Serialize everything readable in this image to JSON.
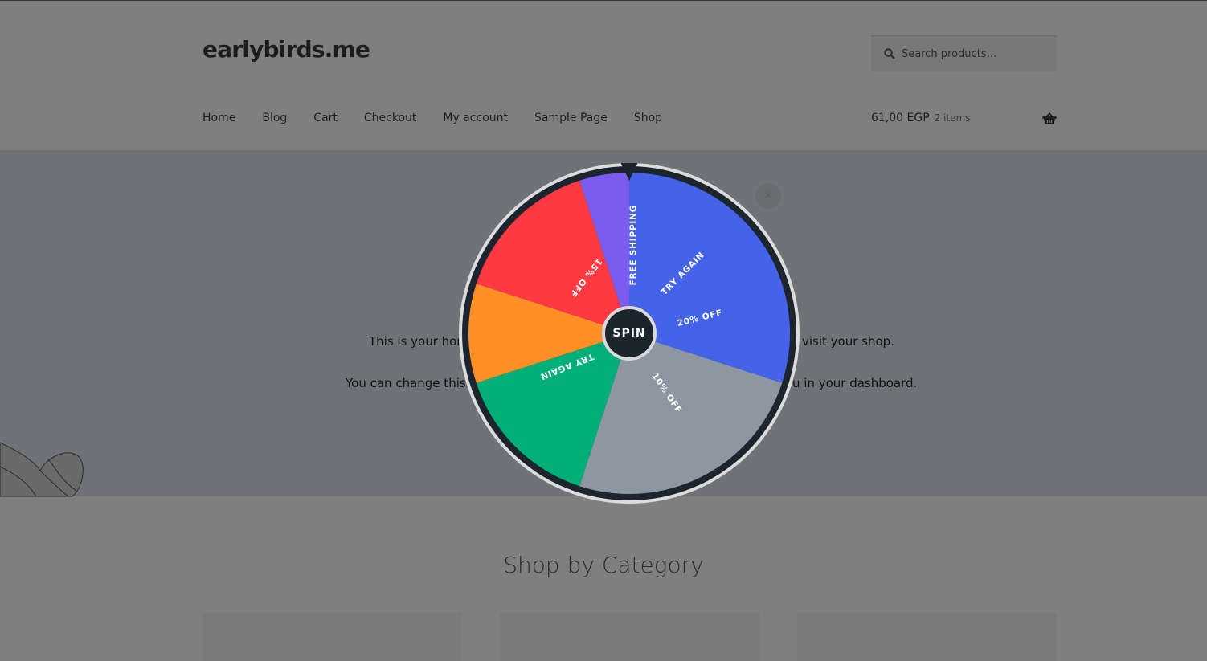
{
  "header": {
    "site_title": "earlybirds.me",
    "search_placeholder": "Search products…",
    "nav": [
      "Home",
      "Blog",
      "Cart",
      "Checkout",
      "My account",
      "Sample Page",
      "Shop"
    ],
    "cart_total": "61,00 EGP",
    "cart_count": "2 items"
  },
  "hero": {
    "line1_left": "This is your hon",
    "line1_right": "visit your shop.",
    "line2_left": "You can change this t",
    "line2_right": "u in your dashboard."
  },
  "section_title": "Shop by Category",
  "wheel": {
    "spin_label": "SPIN",
    "close_icon": "close-icon",
    "segments": [
      {
        "color": "#4563e8",
        "from": 0,
        "to": 108
      },
      {
        "color": "#8d97a2",
        "from": 108,
        "to": 198
      },
      {
        "color": "#00ae78",
        "from": 198,
        "to": 252
      },
      {
        "color": "#ff8f27",
        "from": 252,
        "to": 288
      },
      {
        "color": "#ff3941",
        "from": 288,
        "to": 342
      },
      {
        "color": "#7a5dee",
        "from": 342,
        "to": 360
      }
    ],
    "labels": [
      {
        "text": "FREE SHIPPING",
        "angle": 3,
        "rot": -90,
        "r": 110
      },
      {
        "text": "TRY AGAIN",
        "angle": 42,
        "rot": -45,
        "r": 100
      },
      {
        "text": "20% OFF",
        "angle": 78,
        "rot": -14,
        "r": 90
      },
      {
        "text": "10% OFF",
        "angle": 148,
        "rot": 56,
        "r": 88
      },
      {
        "text": "TRY AGAIN",
        "angle": 242,
        "rot": 158,
        "r": 88
      },
      {
        "text": "15% OFF",
        "angle": 322,
        "rot": 128,
        "r": 88
      }
    ],
    "ring_color": "#1c242d"
  }
}
